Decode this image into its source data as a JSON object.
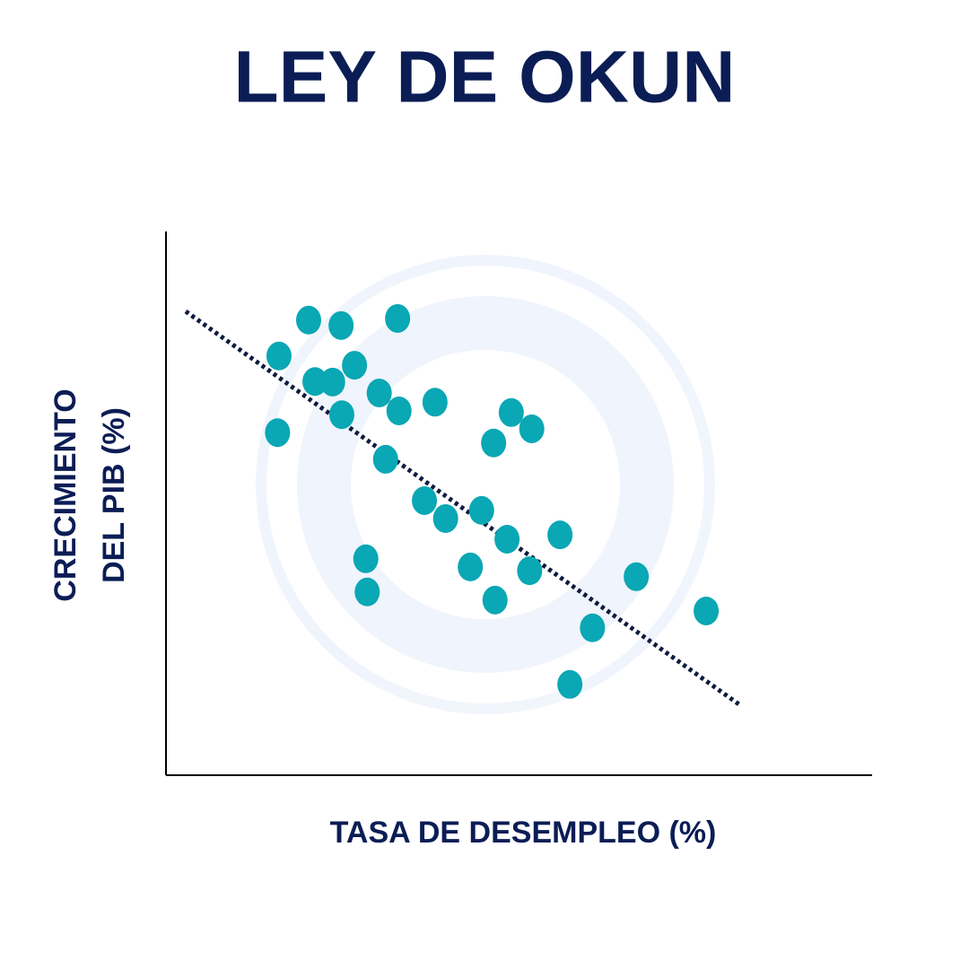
{
  "chart_data": {
    "type": "scatter",
    "title": "LEY DE OKUN",
    "xlabel": "TASA DE DESEMPLEO (%)",
    "ylabel": [
      "CRECIMIENTO",
      "DEL PIB (%)"
    ],
    "xlim": [
      0,
      100
    ],
    "ylim": [
      0,
      100
    ],
    "color": "#0aa7b4",
    "x": [
      20.2,
      24.8,
      32.8,
      16.0,
      26.7,
      21.1,
      23.6,
      30.2,
      33.0,
      38.1,
      24.9,
      15.8,
      48.9,
      51.8,
      46.4,
      31.1,
      36.6,
      39.6,
      44.7,
      48.3,
      55.8,
      28.3,
      28.5,
      43.1,
      51.5,
      46.6,
      66.6,
      76.5,
      60.4,
      57.2
    ],
    "values": [
      83.7,
      82.7,
      84.0,
      77.1,
      75.4,
      72.4,
      72.3,
      70.3,
      67.0,
      68.6,
      66.3,
      63.0,
      66.7,
      63.7,
      61.1,
      58.1,
      50.5,
      47.2,
      48.7,
      43.4,
      44.2,
      39.8,
      33.7,
      38.3,
      37.6,
      32.2,
      36.5,
      30.2,
      27.1,
      16.7
    ],
    "trendline": {
      "x": [
        2.8,
        81.3
      ],
      "values": [
        85.3,
        12.9
      ],
      "color": "#0d1b3e"
    }
  }
}
